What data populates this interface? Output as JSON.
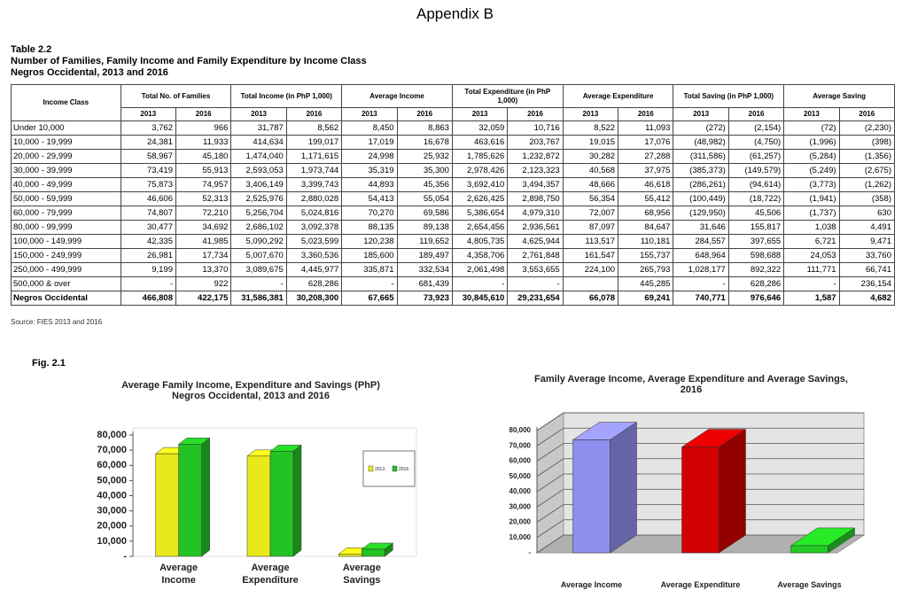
{
  "header": {
    "title": "Appendix B"
  },
  "table": {
    "label": "Table 2.2",
    "title": "Number of Families, Family Income and Family Expenditure by Income Class",
    "subtitle": "Negros Occidental, 2013 and 2016",
    "row_header": "Income Class",
    "groups": [
      "Total No. of Families",
      "Total Income (in PhP 1,000)",
      "Average Income",
      "Total Expenditure (in PhP 1,000)",
      "Average Expenditure",
      "Total Saving (in PhP 1,000)",
      "Average Saving"
    ],
    "years": [
      "2013",
      "2016"
    ],
    "rows": [
      [
        "Under 10,000",
        "3,762",
        "966",
        "31,787",
        "8,562",
        "8,450",
        "8,863",
        "32,059",
        "10,716",
        "8,522",
        "11,093",
        "(272)",
        "(2,154)",
        "(72)",
        "(2,230)"
      ],
      [
        "10,000 - 19,999",
        "24,381",
        "11,933",
        "414,634",
        "199,017",
        "17,019",
        "16,678",
        "463,616",
        "203,767",
        "19,015",
        "17,076",
        "(48,982)",
        "(4,750)",
        "(1,996)",
        "(398)"
      ],
      [
        "20,000 - 29,999",
        "58,967",
        "45,180",
        "1,474,040",
        "1,171,615",
        "24,998",
        "25,932",
        "1,785,626",
        "1,232,872",
        "30,282",
        "27,288",
        "(311,586)",
        "(61,257)",
        "(5,284)",
        "(1,356)"
      ],
      [
        "30,000 - 39,999",
        "73,419",
        "55,913",
        "2,593,053",
        "1,973,744",
        "35,319",
        "35,300",
        "2,978,426",
        "2,123,323",
        "40,568",
        "37,975",
        "(385,373)",
        "(149,579)",
        "(5,249)",
        "(2,675)"
      ],
      [
        "40,000 - 49,999",
        "75,873",
        "74,957",
        "3,406,149",
        "3,399,743",
        "44,893",
        "45,356",
        "3,692,410",
        "3,494,357",
        "48,666",
        "46,618",
        "(286,261)",
        "(94,614)",
        "(3,773)",
        "(1,262)"
      ],
      [
        "50,000 - 59,999",
        "46,606",
        "52,313",
        "2,525,976",
        "2,880,028",
        "54,413",
        "55,054",
        "2,626,425",
        "2,898,750",
        "56,354",
        "55,412",
        "(100,449)",
        "(18,722)",
        "(1,941)",
        "(358)"
      ],
      [
        "60,000 - 79,999",
        "74,807",
        "72,210",
        "5,256,704",
        "5,024,816",
        "70,270",
        "69,586",
        "5,386,654",
        "4,979,310",
        "72,007",
        "68,956",
        "(129,950)",
        "45,506",
        "(1,737)",
        "630"
      ],
      [
        "80,000 - 99,999",
        "30,477",
        "34,692",
        "2,686,102",
        "3,092,378",
        "88,135",
        "89,138",
        "2,654,456",
        "2,936,561",
        "87,097",
        "84,647",
        "31,646",
        "155,817",
        "1,038",
        "4,491"
      ],
      [
        "100,000 - 149,999",
        "42,335",
        "41,985",
        "5,090,292",
        "5,023,599",
        "120,238",
        "119,652",
        "4,805,735",
        "4,625,944",
        "113,517",
        "110,181",
        "284,557",
        "397,655",
        "6,721",
        "9,471"
      ],
      [
        "150,000 - 249,999",
        "26,981",
        "17,734",
        "5,007,670",
        "3,360,536",
        "185,600",
        "189,497",
        "4,358,706",
        "2,761,848",
        "161,547",
        "155,737",
        "648,964",
        "598,688",
        "24,053",
        "33,760"
      ],
      [
        "250,000 - 499,999",
        "9,199",
        "13,370",
        "3,089,675",
        "4,445,977",
        "335,871",
        "332,534",
        "2,061,498",
        "3,553,655",
        "224,100",
        "265,793",
        "1,028,177",
        "892,322",
        "111,771",
        "66,741"
      ],
      [
        "500,000 & over",
        "-",
        "922",
        "-",
        "628,286",
        "-",
        "681,439",
        "-",
        "-",
        null,
        "445,285",
        "-",
        "628,286",
        "-",
        "236,154"
      ],
      [
        "Negros Occidental",
        "466,808",
        "422,175",
        "31,586,381",
        "30,208,300",
        "67,665",
        "73,923",
        "30,845,610",
        "29,231,654",
        "66,078",
        "69,241",
        "740,771",
        "976,646",
        "1,587",
        "4,682"
      ]
    ],
    "source": "Source:  FIES 2013 and 2016"
  },
  "figure": {
    "label": "Fig. 2.1"
  },
  "chart_data": [
    {
      "type": "bar",
      "title": "Average Family Income, Expenditure and Savings (PhP)",
      "subtitle": "Negros Occidental, 2013 and 2016",
      "categories": [
        "Average Income",
        "Average Expenditure",
        "Average Savings"
      ],
      "series": [
        {
          "name": "2013",
          "color": "#e8e81a",
          "values": [
            67665,
            66078,
            1587
          ]
        },
        {
          "name": "2016",
          "color": "#22c322",
          "values": [
            73923,
            69241,
            4682
          ]
        }
      ],
      "ylim": [
        0,
        80000
      ],
      "yticks": [
        {
          "value": 0,
          "label": "-"
        },
        {
          "value": 10000,
          "label": "10,000"
        },
        {
          "value": 20000,
          "label": "20,000"
        },
        {
          "value": 30000,
          "label": "30,000"
        },
        {
          "value": 40000,
          "label": "40,000"
        },
        {
          "value": 50000,
          "label": "50,000"
        },
        {
          "value": 60000,
          "label": "60,000"
        },
        {
          "value": 70000,
          "label": "70,000"
        },
        {
          "value": 80000,
          "label": "80,000"
        }
      ],
      "grid": false,
      "legend": "right"
    },
    {
      "type": "bar",
      "title": "Family Average Income, Average Expenditure and Average Savings, 2016",
      "categories": [
        "Average Income",
        "Average Expenditure",
        "Average Savings"
      ],
      "values": [
        73923,
        69241,
        4682
      ],
      "colors": [
        "#8f8fef",
        "#d00000",
        "#22cc22"
      ],
      "ylim": [
        0,
        80000
      ],
      "yticks": [
        {
          "value": 0,
          "label": "-"
        },
        {
          "value": 10000,
          "label": "10,000"
        },
        {
          "value": 20000,
          "label": "20,000"
        },
        {
          "value": 30000,
          "label": "30,000"
        },
        {
          "value": 40000,
          "label": "40,000"
        },
        {
          "value": 50000,
          "label": "50,000"
        },
        {
          "value": 60000,
          "label": "60,000"
        },
        {
          "value": 70000,
          "label": "70,000"
        },
        {
          "value": 80000,
          "label": "80,000"
        }
      ],
      "grid": true
    }
  ]
}
